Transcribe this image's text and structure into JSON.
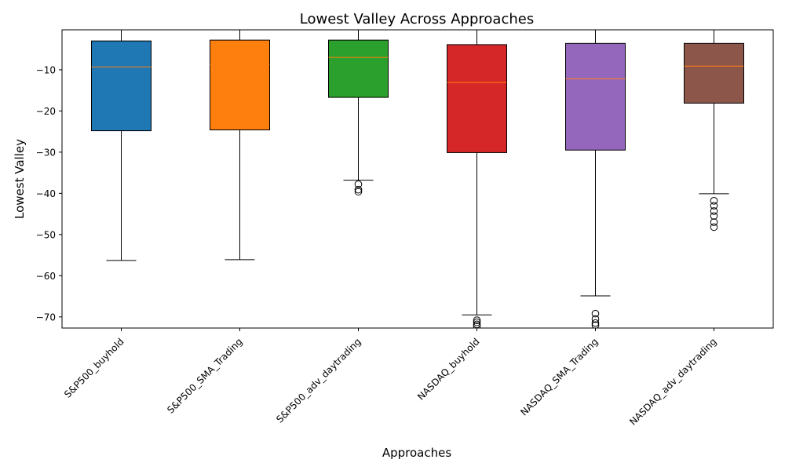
{
  "chart_data": {
    "type": "boxplot",
    "title": "Lowest Valley Across Approaches",
    "xlabel": "Approaches",
    "ylabel": "Lowest Valley",
    "ylim": [
      -72.7,
      -0.3
    ],
    "yticks": [
      -10,
      -20,
      -30,
      -40,
      -50,
      -60,
      -70
    ],
    "grid": false,
    "categories": [
      "S&P500_buyhold",
      "S&P500_SMA_Trading",
      "S&P500_adv_daytrading",
      "NASDAQ_buyhold",
      "NASDAQ_SMA_Trading",
      "NASDAQ_adv_daytrading"
    ],
    "boxes": [
      {
        "label": "S&P500_buyhold",
        "color": "#1f77b4",
        "whisker_low": -56.3,
        "q1": -24.8,
        "median": -9.3,
        "q3": -3.0,
        "whisker_high": 0.0,
        "outliers": []
      },
      {
        "label": "S&P500_SMA_Trading",
        "color": "#ff7f0e",
        "whisker_low": -56.1,
        "q1": -24.6,
        "median": -8.8,
        "q3": -2.8,
        "whisker_high": 0.0,
        "outliers": []
      },
      {
        "label": "S&P500_adv_daytrading",
        "color": "#2ca02c",
        "whisker_low": -36.8,
        "q1": -16.7,
        "median": -7.0,
        "q3": -2.8,
        "whisker_high": 0.0,
        "outliers": [
          -37.8,
          -39.1,
          -39.6
        ]
      },
      {
        "label": "NASDAQ_buyhold",
        "color": "#d62728",
        "whisker_low": -69.5,
        "q1": -30.1,
        "median": -13.1,
        "q3": -3.9,
        "whisker_high": 0.0,
        "outliers": [
          -70.8,
          -71.3,
          -71.8,
          -72.2
        ]
      },
      {
        "label": "NASDAQ_SMA_Trading",
        "color": "#9467bd",
        "whisker_low": -64.9,
        "q1": -29.5,
        "median": -12.2,
        "q3": -3.6,
        "whisker_high": 0.0,
        "outliers": [
          -69.2,
          -70.5,
          -71.5,
          -72.0
        ]
      },
      {
        "label": "NASDAQ_adv_daytrading",
        "color": "#8c564b",
        "whisker_low": -40.1,
        "q1": -18.1,
        "median": -9.1,
        "q3": -3.6,
        "whisker_high": 0.0,
        "outliers": [
          -41.8,
          -43.0,
          -44.3,
          -45.5,
          -47.0,
          -48.2
        ]
      }
    ],
    "median_color": "#ff7f0e"
  }
}
